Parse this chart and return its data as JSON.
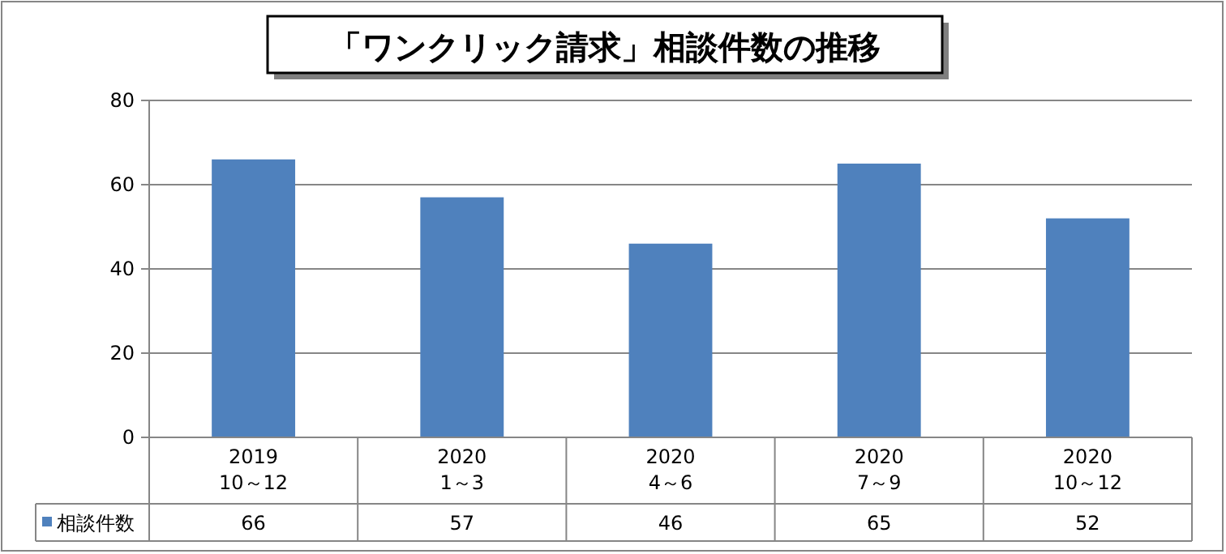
{
  "chart_data": {
    "type": "bar",
    "title": "「ワンクリック請求」相談件数の推移",
    "categories": [
      "2019\n10～12",
      "2020\n1～3",
      "2020\n4～6",
      "2020\n7～9",
      "2020\n10～12"
    ],
    "series": [
      {
        "name": "相談件数",
        "color": "#4f81bd",
        "values": [
          66,
          57,
          46,
          65,
          52
        ]
      }
    ],
    "ylim": [
      0,
      80
    ],
    "yticks": [
      0,
      20,
      40,
      60,
      80
    ],
    "grid": "y",
    "data_labels": true,
    "legend": "bottom left"
  }
}
